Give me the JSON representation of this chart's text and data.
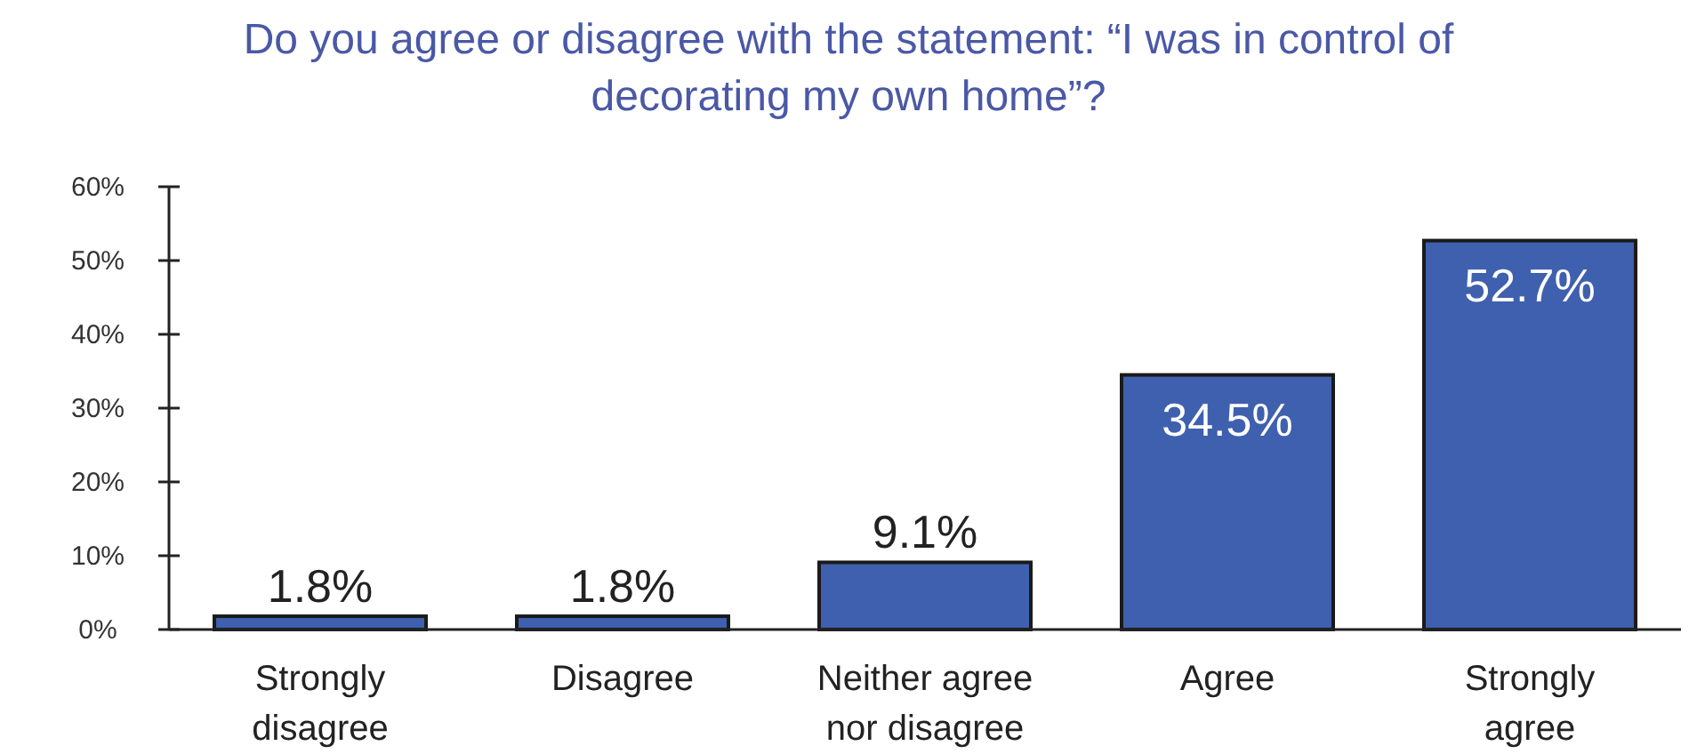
{
  "chart_data": {
    "type": "bar",
    "title": "Do you agree or disagree with the statement: “I was in control of decorating my own home”?",
    "categories": [
      "Strongly disagree",
      "Disagree",
      "Neither agree nor disagree",
      "Agree",
      "Strongly agree"
    ],
    "values": [
      1.8,
      1.8,
      9.1,
      34.5,
      52.7
    ],
    "value_labels": [
      "1.8%",
      "1.8%",
      "9.1%",
      "34.5%",
      "52.7%"
    ],
    "color": "#3f60ae",
    "ylim": [
      0,
      60
    ],
    "yticks": [
      {
        "value": 0,
        "label": "0%"
      },
      {
        "value": 10,
        "label": "10%"
      },
      {
        "value": 20,
        "label": "20%"
      },
      {
        "value": 30,
        "label": "30%"
      },
      {
        "value": 40,
        "label": "40%"
      },
      {
        "value": 50,
        "label": "50%"
      },
      {
        "value": 60,
        "label": "60%"
      }
    ],
    "grid": false
  }
}
